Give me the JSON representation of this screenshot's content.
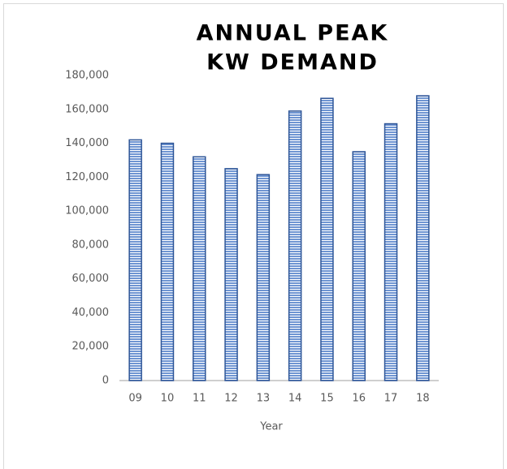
{
  "chart_data": {
    "type": "bar",
    "title": [
      "ANNUAL PEAK",
      "KW DEMAND"
    ],
    "x_label": "Year",
    "categories": [
      "09",
      "10",
      "11",
      "12",
      "13",
      "14",
      "15",
      "16",
      "17",
      "18"
    ],
    "values": [
      142000,
      140000,
      132000,
      125000,
      121500,
      159000,
      166500,
      135000,
      151500,
      168000
    ],
    "color": "#2e5597",
    "ylim": [
      0,
      180000
    ],
    "yticks": [
      0,
      {
        "value": 20000,
        "label": "20,000"
      },
      {
        "value": 40000,
        "label": "40,000"
      },
      {
        "value": 60000,
        "label": "60,000"
      },
      {
        "value": 80000,
        "label": "80,000"
      },
      {
        "value": 100000,
        "label": "100,000"
      },
      {
        "value": 120000,
        "label": "120,000"
      },
      {
        "value": 140000,
        "label": "140,000"
      },
      {
        "value": 160000,
        "label": "160,000"
      },
      {
        "value": 180000,
        "label": "180,000"
      }
    ],
    "grid": false
  }
}
